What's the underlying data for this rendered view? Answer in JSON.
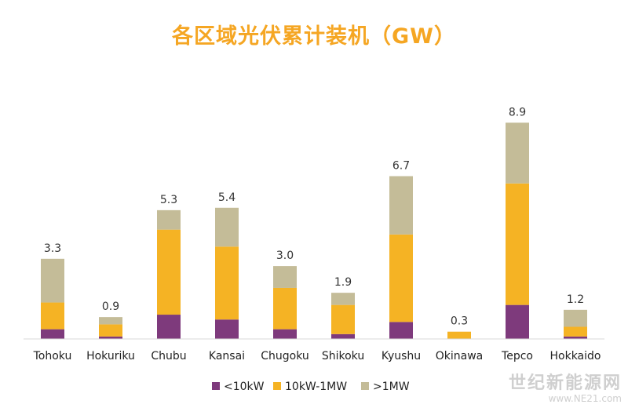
{
  "chart_data": {
    "type": "bar",
    "stacked": true,
    "title": "各区域光伏累计装机（GW）",
    "categories": [
      "Tohoku",
      "Hokuriku",
      "Chubu",
      "Kansai",
      "Chugoku",
      "Shikoku",
      "Kyushu",
      "Okinawa",
      "Tepco",
      "Hokkaido"
    ],
    "totals": [
      3.3,
      0.9,
      5.3,
      5.4,
      3.0,
      1.9,
      6.7,
      0.3,
      8.9,
      1.2
    ],
    "total_labels": [
      "3.3",
      "0.9",
      "5.3",
      "5.4",
      "3.0",
      "1.9",
      "6.7",
      "0.3",
      "8.9",
      "1.2"
    ],
    "series": [
      {
        "name": "<10kW",
        "color": "#7E3A7C",
        "values": [
          0.4,
          0.1,
          1.0,
          0.8,
          0.4,
          0.2,
          0.7,
          0.0,
          1.4,
          0.1
        ]
      },
      {
        "name": "10kW-1MW",
        "color": "#F5B324",
        "values": [
          1.1,
          0.5,
          3.5,
          3.0,
          1.7,
          1.2,
          3.6,
          0.3,
          5.0,
          0.4
        ]
      },
      {
        "name": ">1MW",
        "color": "#C4BC98",
        "values": [
          1.8,
          0.3,
          0.8,
          1.6,
          0.9,
          0.5,
          2.4,
          0.0,
          2.5,
          0.7
        ]
      }
    ],
    "ylim": [
      0,
      9.3
    ],
    "grid": false,
    "legend_position": "bottom"
  },
  "watermark": {
    "text_cn": "世纪新能源网",
    "url": "www.NE21.com"
  }
}
